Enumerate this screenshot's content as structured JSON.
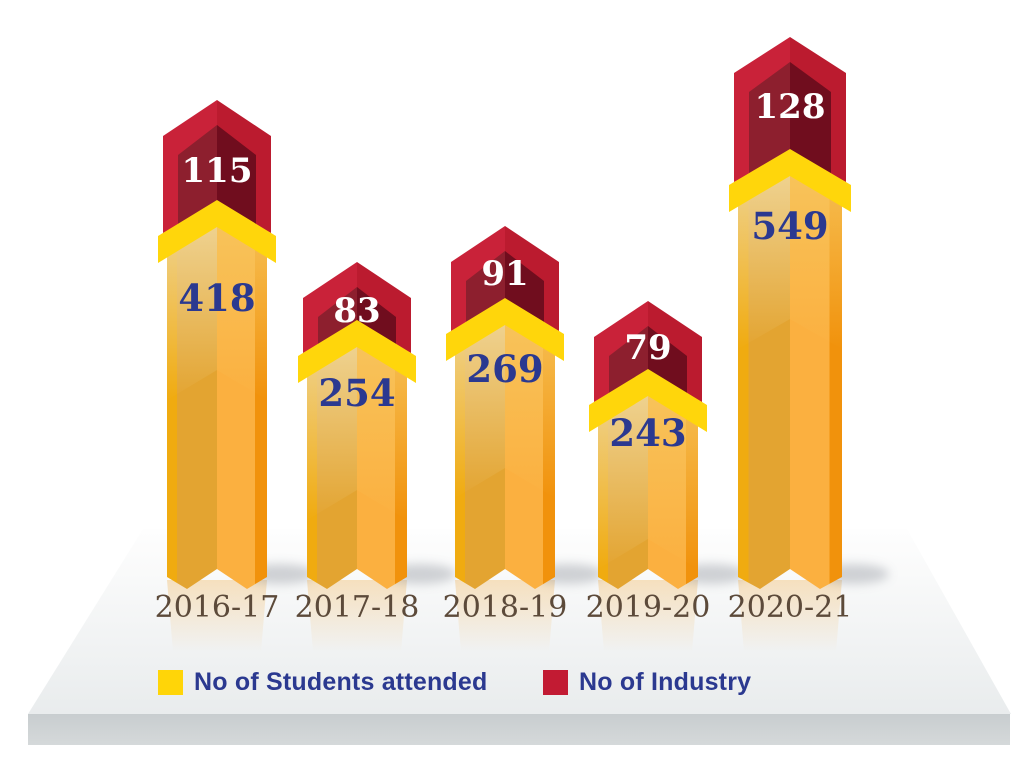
{
  "chart_data": {
    "type": "bar",
    "subtype": "3d-column-infographic",
    "title": "",
    "xlabel": "",
    "ylabel": "",
    "grid": false,
    "axes_visible": false,
    "legend_position": "bottom",
    "categories": [
      "2016-17",
      "2017-18",
      "2018-19",
      "2019-20",
      "2020-21"
    ],
    "series": [
      {
        "name": "No of Students attended",
        "values": [
          418,
          254,
          269,
          243,
          549
        ],
        "color": "#FFD60B",
        "value_label_color": "#2B3990"
      },
      {
        "name": "No of Industry",
        "values": [
          115,
          83,
          91,
          79,
          128
        ],
        "color": "#C32136",
        "value_label_color": "#FFFFFF"
      }
    ]
  },
  "legend": {
    "items": [
      {
        "label": "No of Students attended",
        "swatch_color": "#FFD508"
      },
      {
        "label": "No of Industry",
        "swatch_color": "#C21B33"
      }
    ]
  },
  "colors": {
    "cap_red": "#C32136",
    "cap_inner_maroon_left": "#8D1F2E",
    "cap_inner_maroon_right": "#700D1E",
    "tip_yellow": "#FFD60B",
    "bar_orange_light": "#FBB040",
    "bar_orange_dark": "#E3A431",
    "value_label_blue": "#2B3990",
    "value_label_white": "#FFFFFF",
    "category_label_brown": "#5C4A3A",
    "platform_gray": "#D1D5D6"
  }
}
